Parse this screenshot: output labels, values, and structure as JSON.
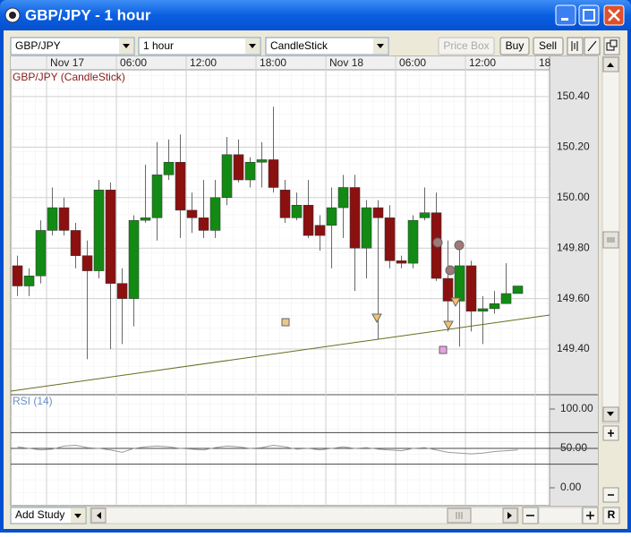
{
  "window": {
    "title": "GBP/JPY - 1 hour"
  },
  "toolbar": {
    "symbol": "GBP/JPY",
    "interval": "1 hour",
    "chart_style": "CandleStick",
    "buttons": [
      "Price Box",
      "Buy",
      "Sell"
    ]
  },
  "footer": {
    "add_study": "Add Study",
    "reset": "R"
  },
  "chart_data": [
    {
      "type": "candlestick",
      "title": "GBP/JPY (CandleStick)",
      "title_color": "#8b1a1a",
      "up_color": "#138a13",
      "down_color": "#8b1010",
      "wick_color": "#666666",
      "grid": true,
      "x": [
        -3,
        -2,
        -1,
        0,
        1,
        2,
        3,
        4,
        5,
        6,
        7,
        8,
        9,
        10,
        11,
        12,
        13,
        14,
        15,
        16,
        17,
        18,
        19,
        20,
        21,
        22,
        23,
        24,
        25,
        26,
        27,
        28,
        29,
        30,
        31,
        32,
        33,
        34,
        35,
        36,
        37,
        38,
        39,
        40
      ],
      "open": [
        149.73,
        149.65,
        149.69,
        149.87,
        149.96,
        149.87,
        149.77,
        149.71,
        150.03,
        149.66,
        149.6,
        149.91,
        149.92,
        150.09,
        150.14,
        149.95,
        149.92,
        149.87,
        150.0,
        150.17,
        150.07,
        150.14,
        150.15,
        150.03,
        149.92,
        149.97,
        149.89,
        149.89,
        149.96,
        150.04,
        149.8,
        149.96,
        149.92,
        149.75,
        149.74,
        149.92,
        149.94,
        149.68,
        149.59,
        149.73,
        149.55,
        149.56,
        149.58,
        149.62
      ],
      "high": [
        149.77,
        149.72,
        149.91,
        150.04,
        150.0,
        149.9,
        149.83,
        150.07,
        150.06,
        149.72,
        149.93,
        150.13,
        150.22,
        150.23,
        150.25,
        150.02,
        150.07,
        150.07,
        150.24,
        150.23,
        150.16,
        150.22,
        150.36,
        150.07,
        150.02,
        150.07,
        149.93,
        150.04,
        150.09,
        150.09,
        149.99,
        149.99,
        149.97,
        149.77,
        149.93,
        150.04,
        150.02,
        149.83,
        149.81,
        149.75,
        149.61,
        149.63,
        149.74,
        149.65
      ],
      "low": [
        149.61,
        149.61,
        149.66,
        149.85,
        149.85,
        149.72,
        149.36,
        149.68,
        149.4,
        149.42,
        149.49,
        149.9,
        149.83,
        150.07,
        149.84,
        149.86,
        149.84,
        149.84,
        149.97,
        150.06,
        150.04,
        150.04,
        150.02,
        149.9,
        149.91,
        149.84,
        149.79,
        149.72,
        149.84,
        149.63,
        149.68,
        149.44,
        149.72,
        149.72,
        149.72,
        149.91,
        149.67,
        149.47,
        149.41,
        149.47,
        149.42,
        149.54,
        149.58,
        149.62
      ],
      "close": [
        149.65,
        149.69,
        149.87,
        149.96,
        149.87,
        149.77,
        149.71,
        150.03,
        149.66,
        149.6,
        149.91,
        149.92,
        150.09,
        150.14,
        149.95,
        149.92,
        149.87,
        150.0,
        150.17,
        150.07,
        150.14,
        150.15,
        150.04,
        149.92,
        149.97,
        149.85,
        149.85,
        149.96,
        150.04,
        149.8,
        149.96,
        149.92,
        149.75,
        149.74,
        149.91,
        149.94,
        149.68,
        149.59,
        149.73,
        149.55,
        149.56,
        149.58,
        149.62,
        149.65
      ],
      "xlim": [
        -3.08,
        43.23
      ],
      "xticks": [
        {
          "value": 0,
          "label": "Nov 17"
        },
        {
          "value": 6,
          "label": "06:00"
        },
        {
          "value": 12,
          "label": "12:00"
        },
        {
          "value": 18,
          "label": "18:00"
        },
        {
          "value": 24,
          "label": "Nov 18"
        },
        {
          "value": 30,
          "label": "06:00"
        },
        {
          "value": 36,
          "label": "12:00"
        },
        {
          "value": 42,
          "label": "18"
        }
      ],
      "ylim": [
        149.223,
        150.506
      ],
      "yticks": [
        {
          "value": 149.4,
          "label": "149.40"
        },
        {
          "value": 149.6,
          "label": "149.60"
        },
        {
          "value": 149.8,
          "label": "149.80"
        },
        {
          "value": 150.0,
          "label": "150.00"
        },
        {
          "value": 150.2,
          "label": "150.20"
        },
        {
          "value": 150.4,
          "label": "150.40"
        }
      ]
    },
    {
      "type": "line",
      "title": "RSI (14)",
      "title_color": "#6b8fc7",
      "color": "#999999",
      "x": [
        -3,
        -2,
        -1,
        0,
        1,
        2,
        3,
        4,
        5,
        6,
        7,
        8,
        9,
        10,
        11,
        12,
        13,
        14,
        15,
        16,
        17,
        18,
        19,
        20,
        21,
        22,
        23,
        24,
        25,
        26,
        27,
        28,
        29,
        30,
        31,
        32,
        33,
        34,
        35,
        36,
        37,
        38,
        39,
        40
      ],
      "values": [
        52,
        50,
        48,
        49,
        53,
        54,
        51,
        50,
        48,
        45,
        50,
        52,
        53,
        52,
        50,
        49,
        48,
        51,
        53,
        52,
        50,
        51,
        54,
        52,
        49,
        50,
        48,
        50,
        52,
        50,
        51,
        49,
        48,
        47,
        50,
        51,
        48,
        45,
        44,
        43,
        44,
        46,
        47,
        48
      ],
      "ylim": [
        -22.7,
        118.2
      ],
      "yticks": [
        {
          "value": 0,
          "label": "0.00"
        },
        {
          "value": 50,
          "label": "50.00"
        },
        {
          "value": 100,
          "label": "100.00"
        }
      ],
      "levels": [
        70,
        50,
        30
      ]
    }
  ]
}
